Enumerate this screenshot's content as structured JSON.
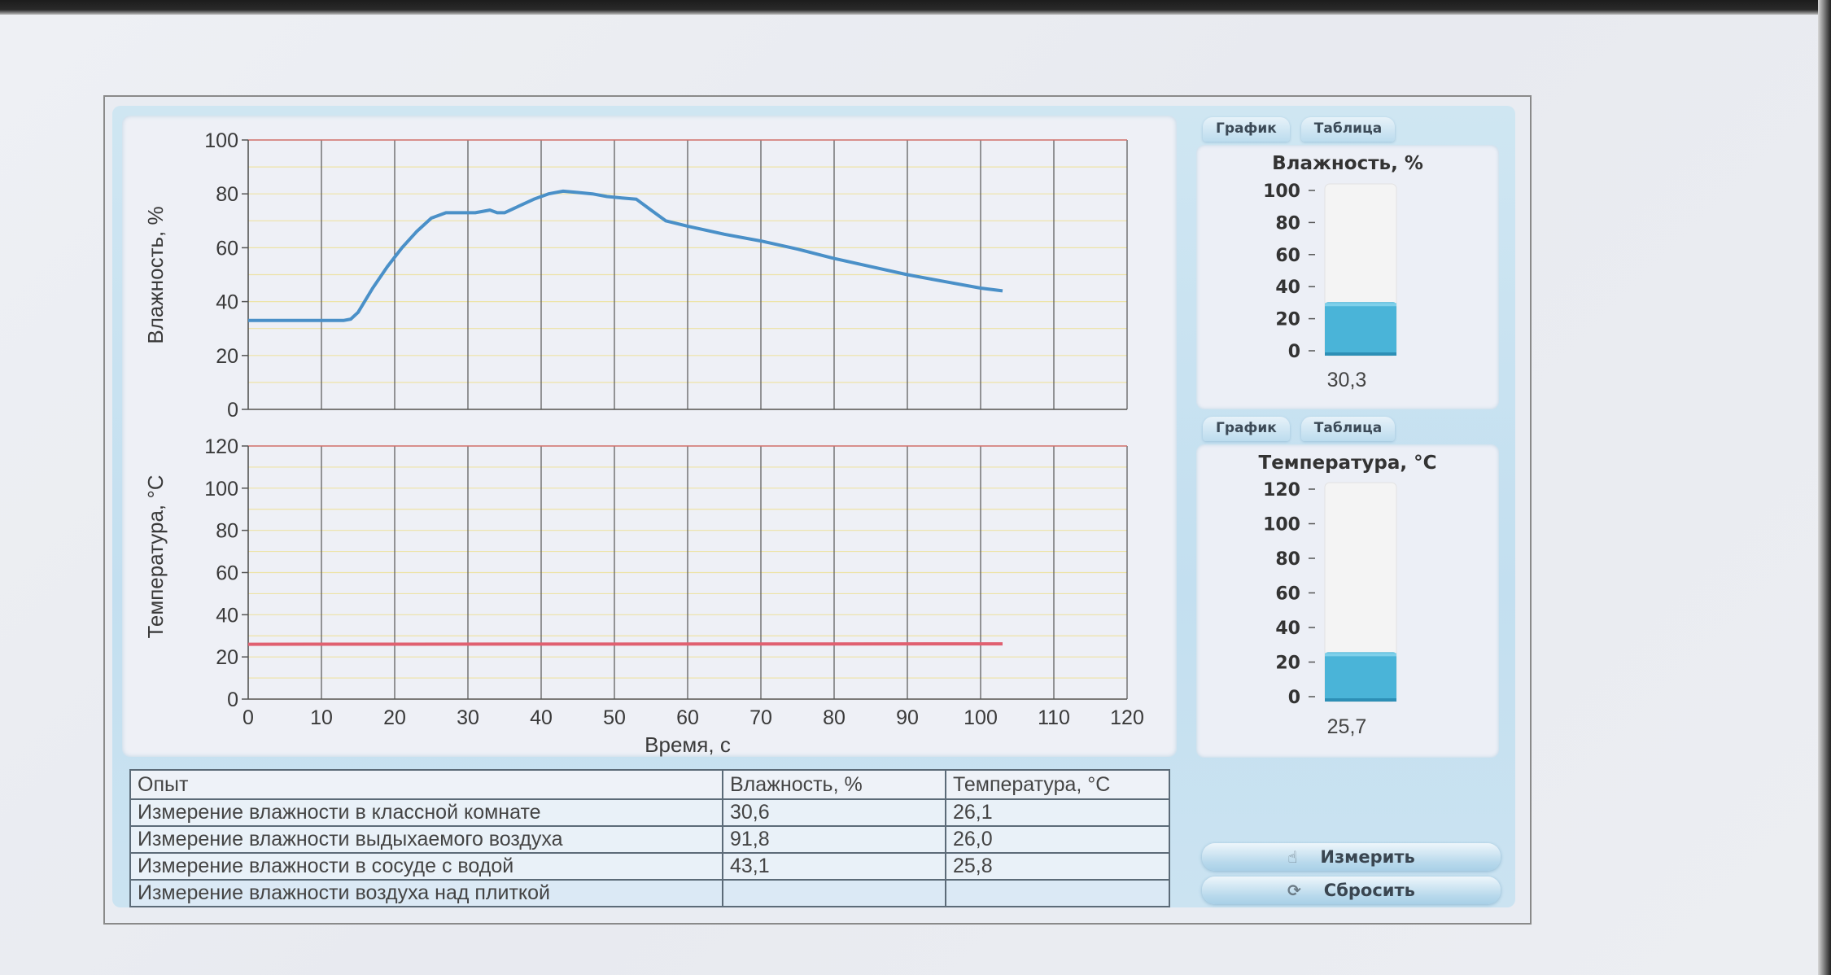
{
  "chart_data": [
    {
      "type": "line",
      "ylabel": "Влажность, %",
      "xlabel": "",
      "xlim": [
        0,
        120
      ],
      "ylim": [
        0,
        100
      ],
      "y_ticks": [
        "0",
        "20",
        "40",
        "60",
        "80",
        "100"
      ],
      "x_ticks_shown": false,
      "grid": true,
      "series": [
        {
          "color": "#4a90c8",
          "x": [
            0,
            5,
            10,
            13,
            14,
            15,
            17,
            19,
            21,
            23,
            25,
            27,
            29,
            31,
            33,
            34,
            35,
            37,
            39,
            41,
            43,
            45,
            47,
            49,
            51,
            53,
            55,
            57,
            60,
            65,
            70,
            75,
            80,
            85,
            90,
            95,
            100,
            103
          ],
          "y": [
            33,
            33,
            33,
            33,
            33.5,
            36,
            45,
            53,
            60,
            66,
            71,
            73,
            73,
            73,
            74,
            73,
            73,
            75.5,
            78,
            80,
            81,
            80.5,
            80,
            79,
            78.5,
            78,
            74,
            70,
            68,
            65,
            62.5,
            59.5,
            56,
            53,
            50,
            47.5,
            45,
            44
          ]
        }
      ]
    },
    {
      "type": "line",
      "ylabel": "Температура, °С",
      "xlabel": "Время, с",
      "xlim": [
        0,
        120
      ],
      "ylim": [
        0,
        120
      ],
      "x_ticks": [
        "0",
        "10",
        "20",
        "30",
        "40",
        "50",
        "60",
        "70",
        "80",
        "90",
        "100",
        "110",
        "120"
      ],
      "y_ticks": [
        "0",
        "20",
        "40",
        "60",
        "80",
        "100",
        "120"
      ],
      "grid": true,
      "series": [
        {
          "color": "#e06070",
          "x": [
            0,
            103
          ],
          "y": [
            26,
            26.2
          ]
        }
      ]
    }
  ],
  "gauges": {
    "humidity": {
      "tabs": [
        "График",
        "Таблица"
      ],
      "title": "Влажность, %",
      "ticks": [
        "0",
        "20",
        "40",
        "60",
        "80",
        "100"
      ],
      "max": 100,
      "level": 30.3,
      "value": "30,3",
      "fill_color": "#4ab4d8"
    },
    "temperature": {
      "tabs": [
        "График",
        "Таблица"
      ],
      "title": "Температура, °С",
      "ticks": [
        "0",
        "20",
        "40",
        "60",
        "80",
        "100",
        "120"
      ],
      "max": 120,
      "level": 25.7,
      "value": "25,7",
      "fill_color": "#4ab4d8"
    }
  },
  "table": {
    "headers": [
      "Опыт",
      "Влажность, %",
      "Температура, °С"
    ],
    "rows": [
      [
        "Измерение влажности в классной комнате",
        "30,6",
        "26,1"
      ],
      [
        "Измерение влажности выдыхаемого воздуха",
        "91,8",
        "26,0"
      ],
      [
        "Измерение влажности в сосуде с водой",
        "43,1",
        "25,8"
      ],
      [
        "Измерение влажности воздуха над плиткой",
        "",
        ""
      ]
    ]
  },
  "actions": {
    "measure_label": "Измерить",
    "measure_icon": "hand-icon",
    "reset_label": "Сбросить",
    "reset_icon": "refresh-icon"
  }
}
